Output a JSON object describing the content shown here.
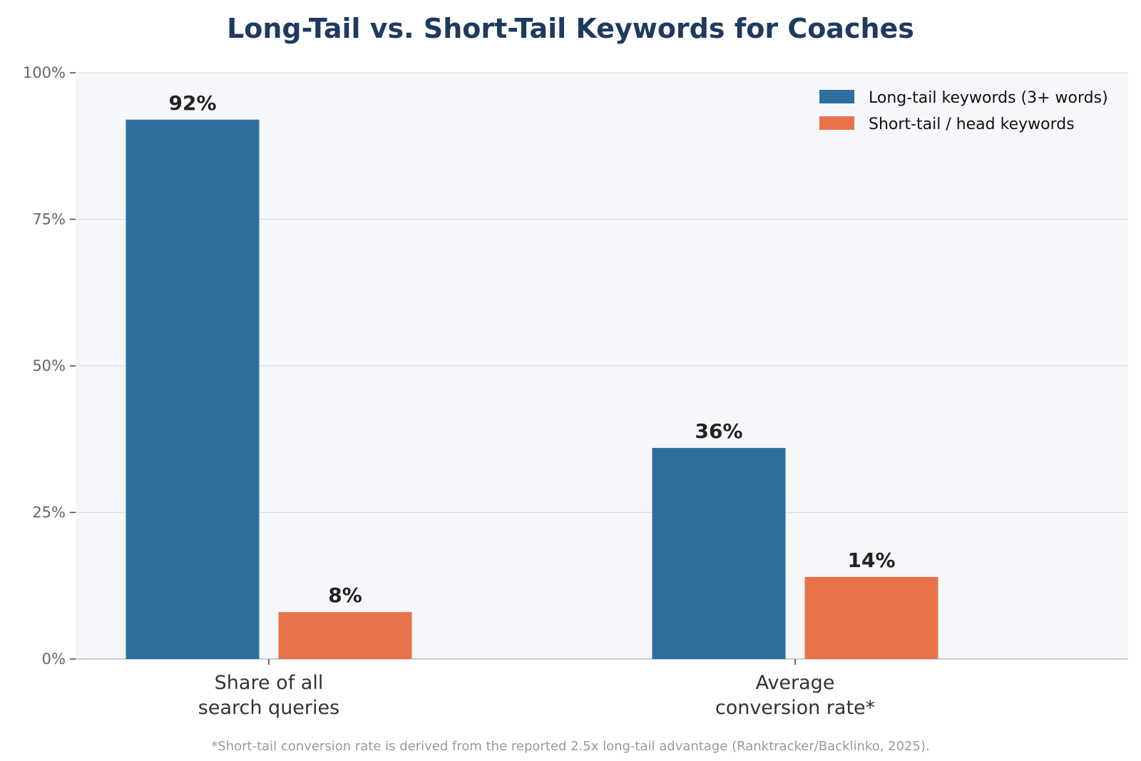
{
  "chart_data": {
    "type": "bar",
    "title": "Long-Tail vs. Short-Tail Keywords for Coaches",
    "xlabel": "",
    "ylabel": "",
    "categories": [
      "Share of all\nsearch queries",
      "Average\nconversion rate*"
    ],
    "series": [
      {
        "name": "Long-tail keywords (3+ words)",
        "values": [
          92,
          36
        ],
        "color": "#2e6e9e"
      },
      {
        "name": "Short-tail / head keywords",
        "values": [
          8,
          14
        ],
        "color": "#e8734b"
      }
    ],
    "data_labels": [
      [
        "92%",
        "36%"
      ],
      [
        "8%",
        "14%"
      ]
    ],
    "ylim": [
      0,
      100
    ],
    "yticks": [
      0,
      25,
      50,
      75,
      100
    ],
    "ytick_labels": [
      "0%",
      "25%",
      "50%",
      "75%",
      "100%"
    ],
    "grid": true,
    "legend_position": "top-right",
    "plot_background": "#f5f7fa",
    "gridline_color": "#d9dde3",
    "footnote": "*Short-tail conversion rate is derived from the reported 2.5x long-tail advantage (Ranktracker/Backlinko, 2025)."
  }
}
